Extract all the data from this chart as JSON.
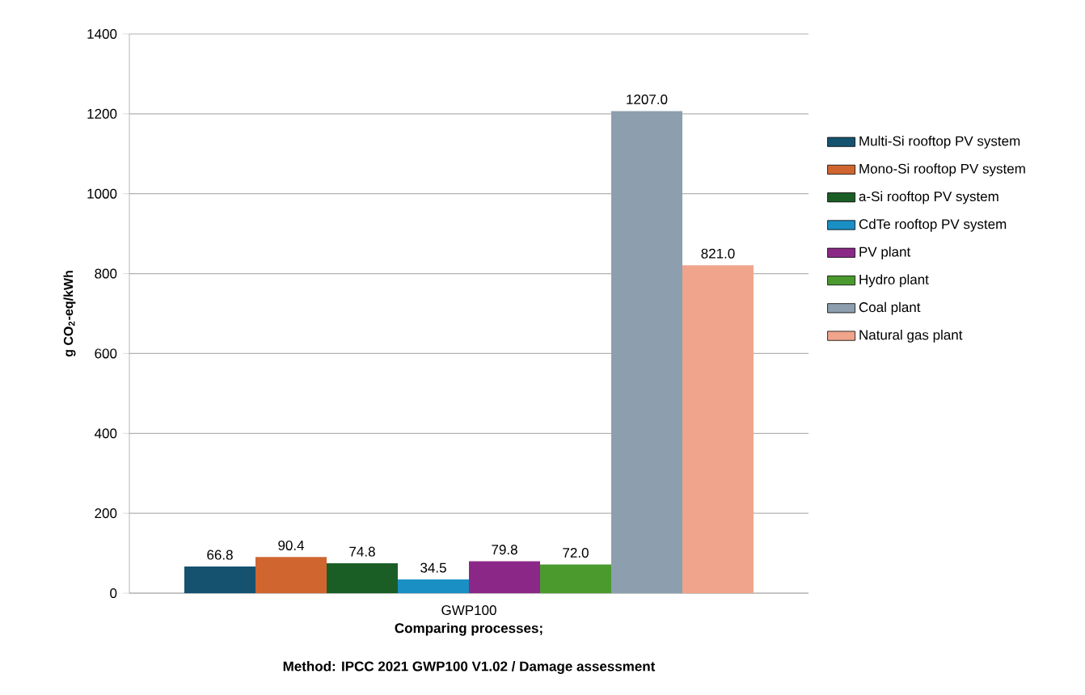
{
  "chart_data": {
    "type": "bar",
    "ylabel": "g CO$_{2}$-eq/kWh",
    "xlabel": "Comparing processes;",
    "annotations": [
      "Method: IPCC 2021 GWP100 V1.02 / Damage assessment"
    ],
    "categories": [
      "GWP100"
    ],
    "series": [
      {
        "name": "Multi-Si rooftop PV system",
        "color": "#155270",
        "values": [
          66.8
        ],
        "value_labels": [
          "66.8"
        ]
      },
      {
        "name": "Mono-Si rooftop PV system",
        "color": "#d06530",
        "values": [
          90.4
        ],
        "value_labels": [
          "90.4"
        ]
      },
      {
        "name": "a-Si rooftop PV system",
        "color": "#1a5e26",
        "values": [
          74.8
        ],
        "value_labels": [
          "74.8"
        ]
      },
      {
        "name": "CdTe rooftop PV system",
        "color": "#1a8fc4",
        "values": [
          34.5
        ],
        "value_labels": [
          "34.5"
        ]
      },
      {
        "name": "PV plant",
        "color": "#8b2887",
        "values": [
          79.8
        ],
        "value_labels": [
          "79.8"
        ]
      },
      {
        "name": "Hydro plant",
        "color": "#4a9a2e",
        "values": [
          72.0
        ],
        "value_labels": [
          "72.0"
        ]
      },
      {
        "name": "Coal plant",
        "color": "#8d9fae",
        "values": [
          1207.0
        ],
        "value_labels": [
          "1207.0"
        ]
      },
      {
        "name": "Natural gas plant",
        "color": "#f0a48c",
        "values": [
          821.0
        ],
        "value_labels": [
          "821.0"
        ]
      }
    ],
    "ylim": [
      0,
      1400
    ],
    "yticks": [
      0,
      200,
      400,
      600,
      800,
      1000,
      1200,
      1400
    ],
    "grid": "y",
    "legend": "right"
  }
}
